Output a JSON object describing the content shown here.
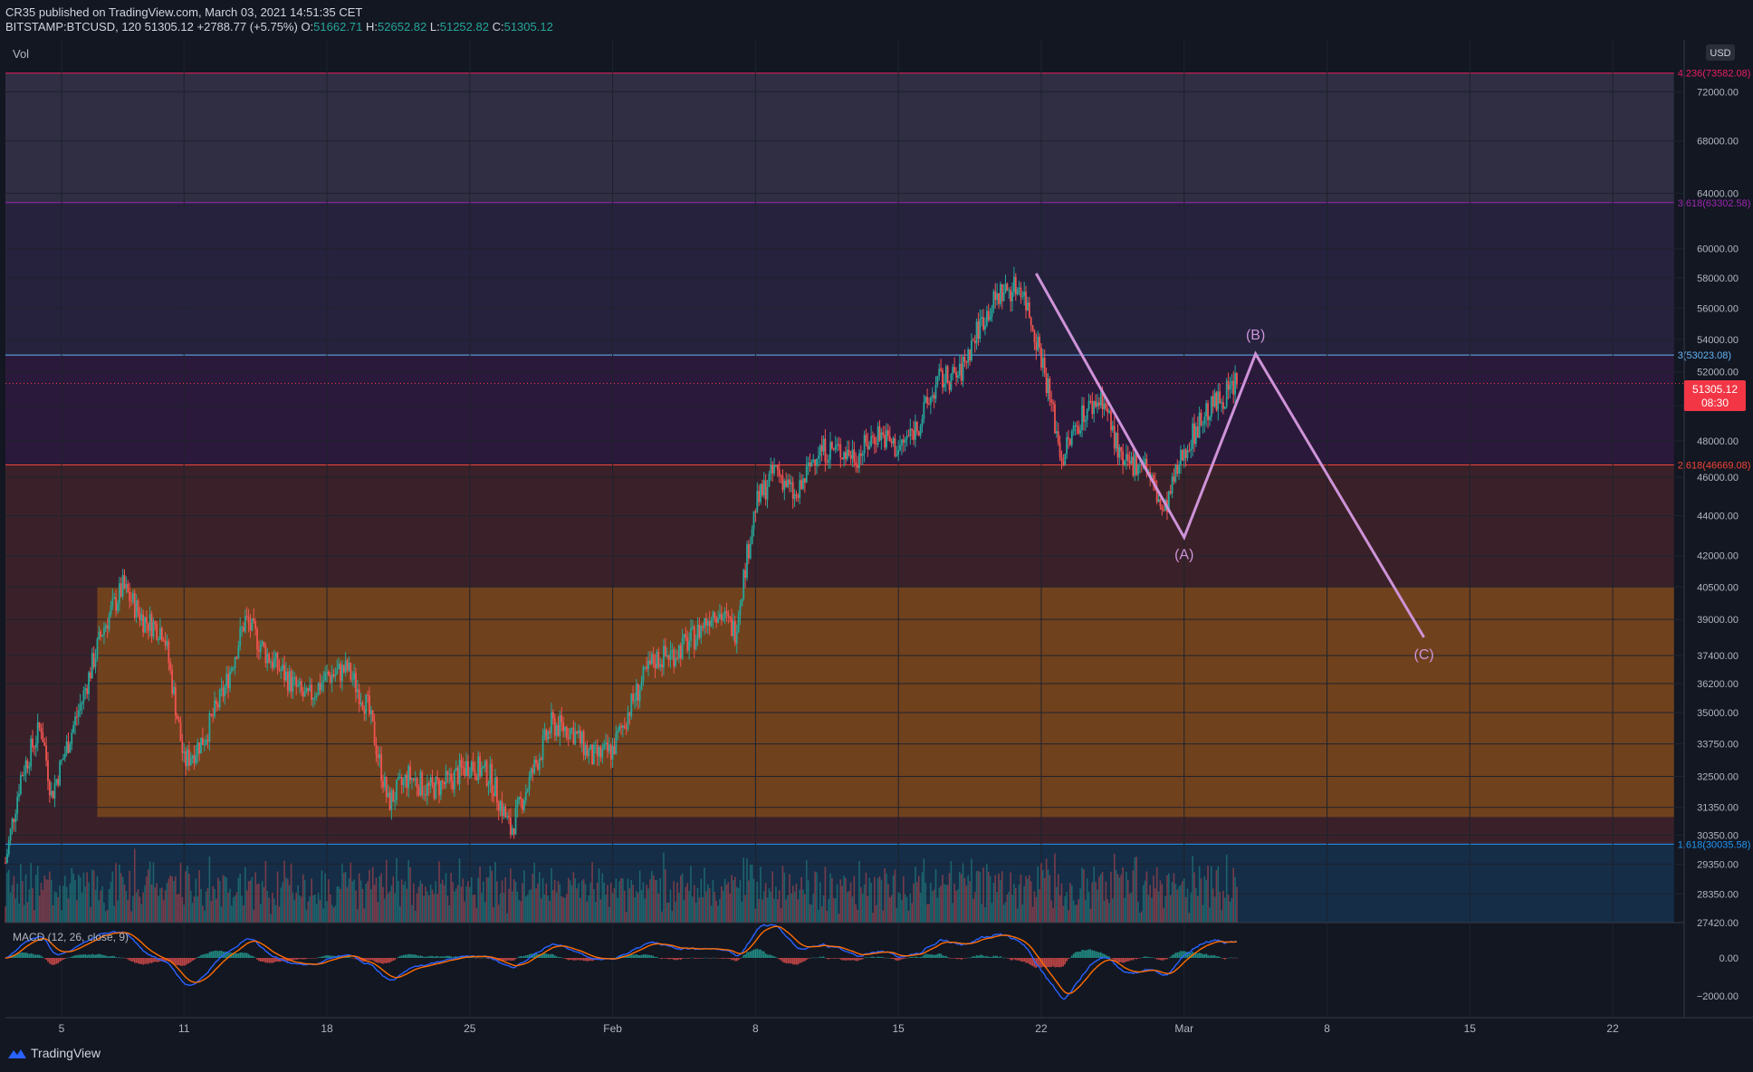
{
  "header": {
    "publisher": "CR35 published on TradingView.com, March 03, 2021 14:51:35 CET",
    "symbol": "BITSTAMP:BTCUSD, 120",
    "last": "51305.12",
    "change": "+2788.77 (+5.75%)",
    "o_label": "O:",
    "o": "51662.71",
    "h_label": "H:",
    "h": "52652.82",
    "l_label": "L:",
    "l": "51252.82",
    "c_label": "C:",
    "c": "51305.12"
  },
  "panes": {
    "vol_label": "Vol",
    "macd_label": "MACD (12, 26, close, 9)",
    "currency": "USD",
    "price_tag": "51305.12",
    "countdown": "08:30"
  },
  "footer": {
    "brand": "TradingView"
  },
  "chart_data": {
    "type": "candlestick",
    "scale": "log",
    "ylim": [
      27420,
      76000
    ],
    "y_ticks": [
      {
        "label": "72000.00",
        "value": 72000
      },
      {
        "label": "68000.00",
        "value": 68000
      },
      {
        "label": "64000.00",
        "value": 64000
      },
      {
        "label": "60000.00",
        "value": 60000
      },
      {
        "label": "58000.00",
        "value": 58000
      },
      {
        "label": "56000.00",
        "value": 56000
      },
      {
        "label": "54000.00",
        "value": 54000
      },
      {
        "label": "52000.00",
        "value": 52000
      },
      {
        "label": "50000.00",
        "value": 50000
      },
      {
        "label": "48000.00",
        "value": 48000
      },
      {
        "label": "46000.00",
        "value": 46000
      },
      {
        "label": "44000.00",
        "value": 44000
      },
      {
        "label": "42000.00",
        "value": 42000
      },
      {
        "label": "40500.00",
        "value": 40500
      },
      {
        "label": "39000.00",
        "value": 39000
      },
      {
        "label": "37400.00",
        "value": 37400
      },
      {
        "label": "36200.00",
        "value": 36200
      },
      {
        "label": "35000.00",
        "value": 35000
      },
      {
        "label": "33750.00",
        "value": 33750
      },
      {
        "label": "32500.00",
        "value": 32500
      },
      {
        "label": "31350.00",
        "value": 31350
      },
      {
        "label": "30350.00",
        "value": 30350
      },
      {
        "label": "29350.00",
        "value": 29350
      },
      {
        "label": "28350.00",
        "value": 28350
      },
      {
        "label": "27420.00",
        "value": 27420
      }
    ],
    "x_ticks": [
      {
        "label": "5",
        "date": "2021-01-05"
      },
      {
        "label": "11",
        "date": "2021-01-11"
      },
      {
        "label": "18",
        "date": "2021-01-18"
      },
      {
        "label": "25",
        "date": "2021-01-25"
      },
      {
        "label": "Feb",
        "date": "2021-02-01"
      },
      {
        "label": "8",
        "date": "2021-02-08"
      },
      {
        "label": "15",
        "date": "2021-02-15"
      },
      {
        "label": "22",
        "date": "2021-02-22"
      },
      {
        "label": "Mar",
        "date": "2021-03-01"
      },
      {
        "label": "8",
        "date": "2021-03-08"
      },
      {
        "label": "15",
        "date": "2021-03-15"
      },
      {
        "label": "22",
        "date": "2021-03-22"
      }
    ],
    "x_range": [
      "2021-01-02T06:00",
      "2021-03-25T12:00"
    ],
    "price_path": [
      [
        "2021-01-02T06:00",
        29400
      ],
      [
        "2021-01-03",
        32500
      ],
      [
        "2021-01-04",
        34500
      ],
      [
        "2021-01-04T12:00",
        31800
      ],
      [
        "2021-01-05",
        33000
      ],
      [
        "2021-01-06",
        35500
      ],
      [
        "2021-01-07",
        38500
      ],
      [
        "2021-01-08",
        40500
      ],
      [
        "2021-01-09",
        39000
      ],
      [
        "2021-01-10",
        38500
      ],
      [
        "2021-01-11",
        33000
      ],
      [
        "2021-01-12",
        34000
      ],
      [
        "2021-01-13",
        36000
      ],
      [
        "2021-01-14",
        39000
      ],
      [
        "2021-01-15",
        37500
      ],
      [
        "2021-01-16",
        36500
      ],
      [
        "2021-01-17",
        35500
      ],
      [
        "2021-01-18",
        36500
      ],
      [
        "2021-01-19",
        36800
      ],
      [
        "2021-01-20",
        35200
      ],
      [
        "2021-01-21",
        31500
      ],
      [
        "2021-01-22",
        32500
      ],
      [
        "2021-01-23",
        32000
      ],
      [
        "2021-01-24",
        32300
      ],
      [
        "2021-01-25",
        33000
      ],
      [
        "2021-01-26",
        32500
      ],
      [
        "2021-01-27",
        30500
      ],
      [
        "2021-01-28",
        32500
      ],
      [
        "2021-01-29",
        34500
      ],
      [
        "2021-01-30",
        34300
      ],
      [
        "2021-01-31",
        33200
      ],
      [
        "2021-02-01",
        33500
      ],
      [
        "2021-02-02",
        35500
      ],
      [
        "2021-02-03",
        37200
      ],
      [
        "2021-02-04",
        37500
      ],
      [
        "2021-02-05",
        38200
      ],
      [
        "2021-02-06",
        39500
      ],
      [
        "2021-02-07",
        38500
      ],
      [
        "2021-02-08",
        44500
      ],
      [
        "2021-02-09",
        46500
      ],
      [
        "2021-02-10",
        44800
      ],
      [
        "2021-02-11",
        47500
      ],
      [
        "2021-02-12",
        47500
      ],
      [
        "2021-02-13",
        47200
      ],
      [
        "2021-02-14",
        48500
      ],
      [
        "2021-02-15",
        47500
      ],
      [
        "2021-02-16",
        49000
      ],
      [
        "2021-02-17",
        51500
      ],
      [
        "2021-02-18",
        51800
      ],
      [
        "2021-02-19",
        55000
      ],
      [
        "2021-02-20",
        57000
      ],
      [
        "2021-02-21",
        57500
      ],
      [
        "2021-02-22",
        53000
      ],
      [
        "2021-02-23",
        47000
      ],
      [
        "2021-02-24",
        49500
      ],
      [
        "2021-02-25",
        50500
      ],
      [
        "2021-02-26",
        46500
      ],
      [
        "2021-02-27",
        47000
      ],
      [
        "2021-02-28",
        44000
      ],
      [
        "2021-03-01",
        47500
      ],
      [
        "2021-03-02",
        49500
      ],
      [
        "2021-03-03T14:00",
        51305
      ]
    ],
    "bands": [
      {
        "label": "4.236(73582.08)",
        "value": 73582.08,
        "color": "#e91e63",
        "fill": "#b39ddb"
      },
      {
        "label": "3.618(63302.58)",
        "value": 63302.58,
        "color": "#9c27b0",
        "fill": "#7e57c2"
      },
      {
        "label": "3(53023.08)",
        "value": 53023.08,
        "color": "#64b5f6",
        "fill": "#9c27b0"
      },
      {
        "label": "2.618(46669.08)",
        "value": 46669.08,
        "color": "#f44336",
        "fill": "#ef5350"
      },
      {
        "label": "1.618(30035.58)",
        "value": 30035.58,
        "color": "#2196f3",
        "fill": "#2196f3"
      }
    ],
    "zone": {
      "top": 40500,
      "bottom": 31000,
      "start": "2021-01-06T18:00",
      "end": "2021-03-25",
      "fill": "#ff9800"
    },
    "wave": [
      {
        "date": "2021-02-21T18:00",
        "price": 58300,
        "label": ""
      },
      {
        "date": "2021-03-01",
        "price": 42900,
        "label": "(A)"
      },
      {
        "date": "2021-03-04T12:00",
        "price": 53100,
        "label": "(B)"
      },
      {
        "date": "2021-03-12T18:00",
        "price": 38200,
        "label": "(C)"
      }
    ],
    "colors": {
      "up": "#26a69a",
      "down": "#ef5350",
      "wave": "#ce93d8",
      "macd": "#2962ff",
      "signal": "#ff6d00",
      "last_price": "#f23645"
    },
    "macd_ticks": [
      {
        "label": "0.00",
        "value": 0
      },
      {
        "label": "−2000.00",
        "value": -2000
      }
    ]
  }
}
